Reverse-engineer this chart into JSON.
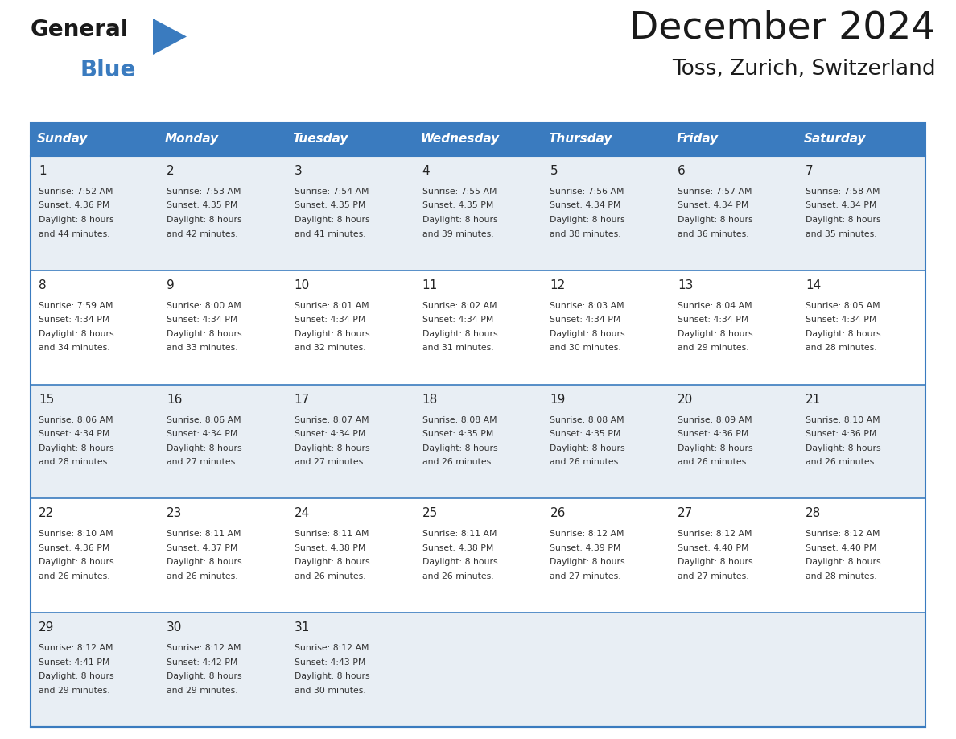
{
  "title": "December 2024",
  "subtitle": "Toss, Zurich, Switzerland",
  "header_bg": "#3a7bbf",
  "header_text_color": "#ffffff",
  "cell_bg_white": "#ffffff",
  "cell_bg_gray": "#e8eef4",
  "border_color": "#3a7bbf",
  "text_color": "#333333",
  "day_headers": [
    "Sunday",
    "Monday",
    "Tuesday",
    "Wednesday",
    "Thursday",
    "Friday",
    "Saturday"
  ],
  "days": [
    {
      "day": 1,
      "col": 0,
      "row": 0,
      "sunrise": "7:52 AM",
      "sunset": "4:36 PM",
      "minutes": "44"
    },
    {
      "day": 2,
      "col": 1,
      "row": 0,
      "sunrise": "7:53 AM",
      "sunset": "4:35 PM",
      "minutes": "42"
    },
    {
      "day": 3,
      "col": 2,
      "row": 0,
      "sunrise": "7:54 AM",
      "sunset": "4:35 PM",
      "minutes": "41"
    },
    {
      "day": 4,
      "col": 3,
      "row": 0,
      "sunrise": "7:55 AM",
      "sunset": "4:35 PM",
      "minutes": "39"
    },
    {
      "day": 5,
      "col": 4,
      "row": 0,
      "sunrise": "7:56 AM",
      "sunset": "4:34 PM",
      "minutes": "38"
    },
    {
      "day": 6,
      "col": 5,
      "row": 0,
      "sunrise": "7:57 AM",
      "sunset": "4:34 PM",
      "minutes": "36"
    },
    {
      "day": 7,
      "col": 6,
      "row": 0,
      "sunrise": "7:58 AM",
      "sunset": "4:34 PM",
      "minutes": "35"
    },
    {
      "day": 8,
      "col": 0,
      "row": 1,
      "sunrise": "7:59 AM",
      "sunset": "4:34 PM",
      "minutes": "34"
    },
    {
      "day": 9,
      "col": 1,
      "row": 1,
      "sunrise": "8:00 AM",
      "sunset": "4:34 PM",
      "minutes": "33"
    },
    {
      "day": 10,
      "col": 2,
      "row": 1,
      "sunrise": "8:01 AM",
      "sunset": "4:34 PM",
      "minutes": "32"
    },
    {
      "day": 11,
      "col": 3,
      "row": 1,
      "sunrise": "8:02 AM",
      "sunset": "4:34 PM",
      "minutes": "31"
    },
    {
      "day": 12,
      "col": 4,
      "row": 1,
      "sunrise": "8:03 AM",
      "sunset": "4:34 PM",
      "minutes": "30"
    },
    {
      "day": 13,
      "col": 5,
      "row": 1,
      "sunrise": "8:04 AM",
      "sunset": "4:34 PM",
      "minutes": "29"
    },
    {
      "day": 14,
      "col": 6,
      "row": 1,
      "sunrise": "8:05 AM",
      "sunset": "4:34 PM",
      "minutes": "28"
    },
    {
      "day": 15,
      "col": 0,
      "row": 2,
      "sunrise": "8:06 AM",
      "sunset": "4:34 PM",
      "minutes": "28"
    },
    {
      "day": 16,
      "col": 1,
      "row": 2,
      "sunrise": "8:06 AM",
      "sunset": "4:34 PM",
      "minutes": "27"
    },
    {
      "day": 17,
      "col": 2,
      "row": 2,
      "sunrise": "8:07 AM",
      "sunset": "4:34 PM",
      "minutes": "27"
    },
    {
      "day": 18,
      "col": 3,
      "row": 2,
      "sunrise": "8:08 AM",
      "sunset": "4:35 PM",
      "minutes": "26"
    },
    {
      "day": 19,
      "col": 4,
      "row": 2,
      "sunrise": "8:08 AM",
      "sunset": "4:35 PM",
      "minutes": "26"
    },
    {
      "day": 20,
      "col": 5,
      "row": 2,
      "sunrise": "8:09 AM",
      "sunset": "4:36 PM",
      "minutes": "26"
    },
    {
      "day": 21,
      "col": 6,
      "row": 2,
      "sunrise": "8:10 AM",
      "sunset": "4:36 PM",
      "minutes": "26"
    },
    {
      "day": 22,
      "col": 0,
      "row": 3,
      "sunrise": "8:10 AM",
      "sunset": "4:36 PM",
      "minutes": "26"
    },
    {
      "day": 23,
      "col": 1,
      "row": 3,
      "sunrise": "8:11 AM",
      "sunset": "4:37 PM",
      "minutes": "26"
    },
    {
      "day": 24,
      "col": 2,
      "row": 3,
      "sunrise": "8:11 AM",
      "sunset": "4:38 PM",
      "minutes": "26"
    },
    {
      "day": 25,
      "col": 3,
      "row": 3,
      "sunrise": "8:11 AM",
      "sunset": "4:38 PM",
      "minutes": "26"
    },
    {
      "day": 26,
      "col": 4,
      "row": 3,
      "sunrise": "8:12 AM",
      "sunset": "4:39 PM",
      "minutes": "27"
    },
    {
      "day": 27,
      "col": 5,
      "row": 3,
      "sunrise": "8:12 AM",
      "sunset": "4:40 PM",
      "minutes": "27"
    },
    {
      "day": 28,
      "col": 6,
      "row": 3,
      "sunrise": "8:12 AM",
      "sunset": "4:40 PM",
      "minutes": "28"
    },
    {
      "day": 29,
      "col": 0,
      "row": 4,
      "sunrise": "8:12 AM",
      "sunset": "4:41 PM",
      "minutes": "29"
    },
    {
      "day": 30,
      "col": 1,
      "row": 4,
      "sunrise": "8:12 AM",
      "sunset": "4:42 PM",
      "minutes": "29"
    },
    {
      "day": 31,
      "col": 2,
      "row": 4,
      "sunrise": "8:12 AM",
      "sunset": "4:43 PM",
      "minutes": "30"
    }
  ]
}
